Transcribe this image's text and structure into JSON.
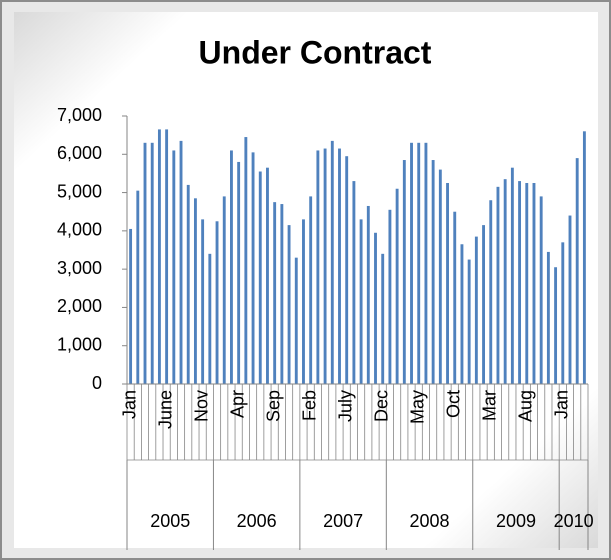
{
  "chart_data": {
    "type": "bar",
    "title": "Under Contract",
    "categories": [
      "Jan",
      null,
      null,
      null,
      null,
      "June",
      null,
      null,
      null,
      null,
      "Nov",
      null,
      null,
      null,
      null,
      "Apr",
      null,
      null,
      null,
      null,
      "Sep",
      null,
      null,
      null,
      null,
      "Feb",
      null,
      null,
      null,
      null,
      "July",
      null,
      null,
      null,
      null,
      "Dec",
      null,
      null,
      null,
      null,
      "May",
      null,
      null,
      null,
      null,
      "Oct",
      null,
      null,
      null,
      null,
      "Mar",
      null,
      null,
      null,
      null,
      "Aug",
      null,
      null,
      null,
      null,
      "Jan",
      null,
      null,
      null
    ],
    "years": [
      "2005",
      "2006",
      "2007",
      "2008",
      "2009",
      "2010"
    ],
    "values": [
      4050,
      5050,
      6300,
      6300,
      6650,
      6650,
      6100,
      6350,
      5200,
      4850,
      4300,
      3400,
      4250,
      4900,
      6100,
      5800,
      6450,
      6050,
      5550,
      5650,
      4750,
      4700,
      4150,
      3300,
      4300,
      4900,
      6100,
      6150,
      6350,
      6150,
      5950,
      5300,
      4300,
      4650,
      3950,
      3400,
      4550,
      5100,
      5850,
      6300,
      6300,
      6300,
      5850,
      5600,
      5250,
      4500,
      3650,
      3250,
      3850,
      4150,
      4800,
      5150,
      5350,
      5650,
      5300,
      5250,
      5250,
      4900,
      3450,
      3050,
      3700,
      4400,
      5900,
      6600
    ],
    "color": "#4f81bd",
    "ylim": [
      0,
      7000
    ],
    "yticks": [
      0,
      {
        "value": 1000,
        "label": "1,000"
      },
      {
        "value": 2000,
        "label": "2,000"
      },
      {
        "value": 3000,
        "label": "3,000"
      },
      {
        "value": 4000,
        "label": "4,000"
      },
      {
        "value": 5000,
        "label": "5,000"
      },
      {
        "value": 6000,
        "label": "6,000"
      },
      {
        "value": 7000,
        "label": "7,000"
      }
    ],
    "grid": false
  }
}
